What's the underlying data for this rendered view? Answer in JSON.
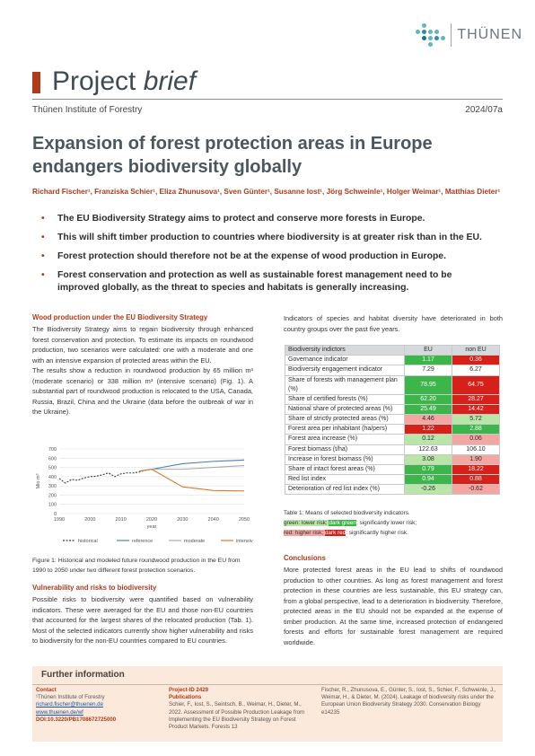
{
  "logo": {
    "text": "THÜNEN",
    "dot_colors": [
      "#ffffff",
      "#5fb7b8",
      "#ffffff",
      "#ffffff",
      "#ffffff",
      "#5fb7b8",
      "#2a8fa3",
      "#5fb7b8",
      "#5fb7b8",
      "#ffffff",
      "#ffffff",
      "#1d6f8e",
      "#5fb7b8",
      "#2a8fa3",
      "#5fb7b8",
      "#ffffff",
      "#ffffff",
      "#5fb7b8",
      "#ffffff",
      "#ffffff"
    ]
  },
  "header": {
    "word1": "Project",
    "word2": "brief",
    "institute": "Thünen Institute of Forestry",
    "issue": "2024/07a"
  },
  "title": "Expansion of forest protection areas in Europe endangers biodiversity globally",
  "authors": "Richard Fischer¹, Franziska Schier¹, Eliza Zhunusova¹, Sven Günter¹, Susanne Iost¹, Jörg Schweinle¹, Holger Weimar¹, Matthias Dieter¹",
  "bullets": [
    "The EU Biodiversity Strategy aims to protect and conserve more forests in Europe.",
    "This will shift timber production to countries where biodiversity is at greater risk than in the EU.",
    "Forest protection should therefore not be at the expense of wood production in Europe.",
    "Forest conservation and protection as well as sustainable forest management need to be improved globally, as the threat to species and habitats is generally increasing."
  ],
  "left": {
    "h1": "Wood production under the EU Biodiversity Strategy",
    "p1": "The Biodiversity Strategy aims to regain biodiversity through enhanced forest conservation and protection. To estimate its impacts on roundwood production, two scenarios were calculated: one with a moderate and one with an intensive expansion of protected areas within the EU.",
    "p2": "The results show a reduction in roundwood production by 65 million m³ (moderate scenario) or 338 million m³ (intensive scenario) (Fig. 1). A substantial part of roundwood production is relocated to the USA, Canada, Russia, Brazil, China and the Ukraine (data before the outbreak of war in the Ukraine).",
    "fig_caption": "Figure 1: Historical and modeled future roundwood production in the EU from 1990 to 2050 under two different forest protection scenarios.",
    "h2": "Vulnerability and risks to biodiversity",
    "p3": "Possible risks to biodiversity were quantified based on vulnerability indicators. These were averaged for the EU and those non-EU countries that accounted for the largest shares of the relocated production (Tab. 1). Most of the selected indicators currently show higher vulnerability and risks to biodiversity for the non-EU countries compared to EU countries."
  },
  "chart_data": {
    "type": "line",
    "ylabel": "Mio m³",
    "xlabel": "year",
    "ylim": [
      0,
      700
    ],
    "yticks": [
      0,
      100,
      200,
      300,
      400,
      500,
      600,
      700
    ],
    "xticks": [
      1990,
      2000,
      2010,
      2020,
      2030,
      2040,
      2050
    ],
    "series": [
      {
        "name": "historical",
        "color": "#3b3b3b",
        "dash": "2,1.5",
        "x": [
          1990,
          1992,
          1994,
          1996,
          1998,
          2000,
          2002,
          2004,
          2006,
          2008,
          2010,
          2012,
          2014,
          2016,
          2018,
          2020
        ],
        "values": [
          380,
          330,
          370,
          360,
          385,
          400,
          405,
          420,
          440,
          400,
          430,
          440,
          440,
          450,
          470,
          480
        ]
      },
      {
        "name": "reference",
        "color": "#4a7fc1",
        "dash": "",
        "x": [
          2016,
          2020,
          2030,
          2040,
          2050
        ],
        "values": [
          460,
          480,
          540,
          565,
          580
        ]
      },
      {
        "name": "moderate",
        "color": "#a9a9a9",
        "dash": "",
        "x": [
          2016,
          2020,
          2030,
          2040,
          2050
        ],
        "values": [
          460,
          480,
          480,
          500,
          520
        ]
      },
      {
        "name": "intensive",
        "color": "#e07a2e",
        "dash": "",
        "x": [
          2016,
          2020,
          2030,
          2040,
          2050
        ],
        "values": [
          460,
          480,
          290,
          250,
          245
        ]
      }
    ]
  },
  "right": {
    "intro": "Indicators of species and habitat diversity have deteriorated in both country groups over the past five years.",
    "table": {
      "headers": [
        "Biodiversity indictors",
        "EU",
        "non EU"
      ],
      "rows": [
        {
          "label": "Governance indicator",
          "eu": "1.17",
          "non": "0.36",
          "euc": "#3cb54a",
          "nonc": "#d6201a"
        },
        {
          "label": "Biodiversity engagement indicator",
          "eu": "7.29",
          "non": "6.27",
          "euc": "#ffffff",
          "nonc": "#ffffff"
        },
        {
          "label": "Share of forests with management plan (%)",
          "eu": "78.95",
          "non": "64.75",
          "euc": "#3cb54a",
          "nonc": "#d6201a"
        },
        {
          "label": "Share of certified forests (%)",
          "eu": "62.20",
          "non": "28.27",
          "euc": "#3cb54a",
          "nonc": "#d6201a"
        },
        {
          "label": "National share of protected areas (%)",
          "eu": "25.49",
          "non": "14.42",
          "euc": "#3cb54a",
          "nonc": "#d6201a"
        },
        {
          "label": "Share of strictly protected areas (%)",
          "eu": "4.46",
          "non": "5.72",
          "euc": "#f3a7a3",
          "nonc": "#b8e6a8"
        },
        {
          "label": "Forest area per inhabitant (ha/pers)",
          "eu": "1.22",
          "non": "2.88",
          "euc": "#d6201a",
          "nonc": "#3cb54a"
        },
        {
          "label": "Forest area increase (%)",
          "eu": "0.12",
          "non": "0.06",
          "euc": "#b8e6a8",
          "nonc": "#f3a7a3"
        },
        {
          "label": "Forest biomass (t/ha)",
          "eu": "122.63",
          "non": "106.10",
          "euc": "#ffffff",
          "nonc": "#ffffff"
        },
        {
          "label": "Increase in forest biomass (%)",
          "eu": "3.08",
          "non": "1.90",
          "euc": "#b8e6a8",
          "nonc": "#f3a7a3"
        },
        {
          "label": "Share of intact forest areas (%)",
          "eu": "0.79",
          "non": "18.22",
          "euc": "#3cb54a",
          "nonc": "#d6201a"
        },
        {
          "label": "Red list index",
          "eu": "0.94",
          "non": "0.88",
          "euc": "#3cb54a",
          "nonc": "#d6201a"
        },
        {
          "label": "Deterioration of red list index (%)",
          "eu": "-0.26",
          "non": "-0.62",
          "euc": "#b8e6a8",
          "nonc": "#f3a7a3"
        }
      ]
    },
    "tab_caption": "Table 1: Means of selected biodiversity indicators.",
    "legend1": {
      "a": "green: lower risk; ",
      "b": "dark green",
      "c": ": significantly lower risk;"
    },
    "legend2": {
      "a": "red: higher risk; ",
      "b": "dark red",
      "c": ": significantly higher risk."
    },
    "h3": "Conclusions",
    "p4": "More protected forest areas in the EU lead to shifts of roundwood production to other countries. As long as forest management and forest protection in these countries are less sustainable, this EU strategy can, from a global perspective, lead to a deterioration in biodiversity. Therefore, protected areas in the EU should not be expanded at the expense of timber production. At the same time, increased protection of endangered forests and efforts for sustainable forest management are required worldwide."
  },
  "footer": {
    "title": "Further information",
    "contact_h": "Contact",
    "contact": "¹Thünen Institute of Forestry",
    "email": "richard.fischer@thuenen.de",
    "web": "www.thuenen.de/wf",
    "doi": "DOI:10.3220/PB1708672725000",
    "project": "Project-ID 2429",
    "pubs_h": "Publications",
    "pub1": "Schier, F., Iost, S., Seintsch, B., Weimar, H., Dieter, M., 2022. Assessment of Possible Production Leakage from Implementing the EU Biodiversity Strategy on Forest Product Markets. Forests 13",
    "pub2": "Fischer, R., Zhunusova, E., Günter, S., Iost, S., Schier, F., Schweinle, J., Weimar, H., & Dieter, M. (2024). Leakage of biodiversity risks under the European Union Biodiversity Strategy 2030. Conservation Biology e14235"
  }
}
